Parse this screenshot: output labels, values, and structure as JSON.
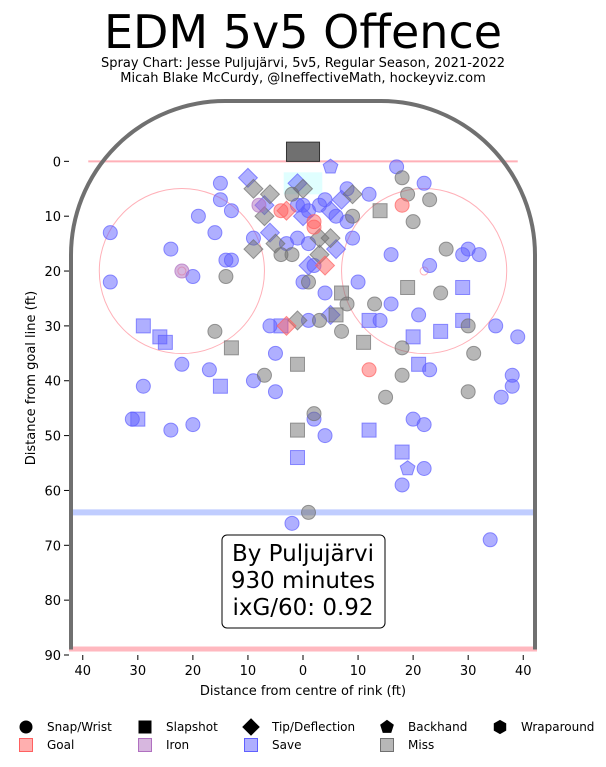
{
  "header": {
    "title": "EDM 5v5 Offence",
    "subtitle_1": "Spray Chart: Jesse Puljujärvi, 5v5, Regular Season, 2021-2022",
    "subtitle_2": "Micah Blake McCurdy, @IneffectiveMath, hockeyviz.com"
  },
  "annotation": {
    "line1": "By Puljujärvi",
    "line2": "930 minutes",
    "line3": "ixG/60: 0.92"
  },
  "legend": {
    "shapes": [
      "Snap/Wrist",
      "Slapshot",
      "Tip/Deflection",
      "Backhand",
      "Wraparound"
    ],
    "outcomes": [
      "Goal",
      "Iron",
      "Save",
      "Miss"
    ]
  },
  "colors": {
    "goal": "#ff6060",
    "iron": "#b070c0",
    "save": "#6060ff",
    "miss": "#707070",
    "board": "#707070",
    "red_line": "#ffb0b8",
    "blue_line": "#b0c0ff"
  },
  "chart_data": {
    "type": "scatter",
    "xlabel": "Distance from centre of rink (ft)",
    "ylabel": "Distance from goal line (ft)",
    "xlim": [
      -42.5,
      42.5
    ],
    "ylim": [
      90,
      -11
    ],
    "xticks": [
      "40",
      "30",
      "20",
      "10",
      "0",
      "10",
      "20",
      "30",
      "40"
    ],
    "xtick_values": [
      -40,
      -30,
      -20,
      -10,
      0,
      10,
      20,
      30,
      40
    ],
    "yticks": [
      0,
      10,
      20,
      30,
      40,
      50,
      60,
      70,
      80,
      90
    ],
    "points": [
      {
        "x": -35,
        "y": 13,
        "shape": "Snap/Wrist",
        "outcome": "Save"
      },
      {
        "x": -35,
        "y": 22,
        "shape": "Snap/Wrist",
        "outcome": "Save"
      },
      {
        "x": -29,
        "y": 41,
        "shape": "Snap/Wrist",
        "outcome": "Save"
      },
      {
        "x": -29,
        "y": 30,
        "shape": "Slapshot",
        "outcome": "Save"
      },
      {
        "x": -31,
        "y": 47,
        "shape": "Snap/Wrist",
        "outcome": "Save"
      },
      {
        "x": -30,
        "y": 47,
        "shape": "Slapshot",
        "outcome": "Save"
      },
      {
        "x": -26,
        "y": 32,
        "shape": "Slapshot",
        "outcome": "Save"
      },
      {
        "x": -25,
        "y": 33,
        "shape": "Slapshot",
        "outcome": "Save"
      },
      {
        "x": -24,
        "y": 16,
        "shape": "Snap/Wrist",
        "outcome": "Save"
      },
      {
        "x": -24,
        "y": 49,
        "shape": "Snap/Wrist",
        "outcome": "Save"
      },
      {
        "x": -22,
        "y": 37,
        "shape": "Snap/Wrist",
        "outcome": "Save"
      },
      {
        "x": -22,
        "y": 20,
        "shape": "Snap/Wrist",
        "outcome": "Iron"
      },
      {
        "x": -20,
        "y": 21,
        "shape": "Snap/Wrist",
        "outcome": "Save"
      },
      {
        "x": -20,
        "y": 48,
        "shape": "Snap/Wrist",
        "outcome": "Save"
      },
      {
        "x": -19,
        "y": 10,
        "shape": "Snap/Wrist",
        "outcome": "Save"
      },
      {
        "x": -17,
        "y": 38,
        "shape": "Snap/Wrist",
        "outcome": "Save"
      },
      {
        "x": -16,
        "y": 31,
        "shape": "Snap/Wrist",
        "outcome": "Miss"
      },
      {
        "x": -16,
        "y": 13,
        "shape": "Snap/Wrist",
        "outcome": "Save"
      },
      {
        "x": -15,
        "y": 4,
        "shape": "Snap/Wrist",
        "outcome": "Save"
      },
      {
        "x": -15,
        "y": 7,
        "shape": "Snap/Wrist",
        "outcome": "Save"
      },
      {
        "x": -15,
        "y": 41,
        "shape": "Slapshot",
        "outcome": "Save"
      },
      {
        "x": -14,
        "y": 18,
        "shape": "Snap/Wrist",
        "outcome": "Save"
      },
      {
        "x": -14,
        "y": 21,
        "shape": "Snap/Wrist",
        "outcome": "Miss"
      },
      {
        "x": -13,
        "y": 9,
        "shape": "Snap/Wrist",
        "outcome": "Save"
      },
      {
        "x": -13,
        "y": 18,
        "shape": "Snap/Wrist",
        "outcome": "Save"
      },
      {
        "x": -13,
        "y": 34,
        "shape": "Slapshot",
        "outcome": "Miss"
      },
      {
        "x": -10,
        "y": 3,
        "shape": "Tip/Deflection",
        "outcome": "Save"
      },
      {
        "x": -9,
        "y": 5,
        "shape": "Tip/Deflection",
        "outcome": "Miss"
      },
      {
        "x": -9,
        "y": 14,
        "shape": "Snap/Wrist",
        "outcome": "Save"
      },
      {
        "x": -9,
        "y": 16,
        "shape": "Tip/Deflection",
        "outcome": "Miss"
      },
      {
        "x": -9,
        "y": 40,
        "shape": "Snap/Wrist",
        "outcome": "Save"
      },
      {
        "x": -8,
        "y": 8,
        "shape": "Snap/Wrist",
        "outcome": "Iron"
      },
      {
        "x": -7,
        "y": 8,
        "shape": "Tip/Deflection",
        "outcome": "Save"
      },
      {
        "x": -7,
        "y": 10,
        "shape": "Tip/Deflection",
        "outcome": "Miss"
      },
      {
        "x": -7,
        "y": 39,
        "shape": "Snap/Wrist",
        "outcome": "Miss"
      },
      {
        "x": -6,
        "y": 6,
        "shape": "Tip/Deflection",
        "outcome": "Miss"
      },
      {
        "x": -6,
        "y": 13,
        "shape": "Tip/Deflection",
        "outcome": "Save"
      },
      {
        "x": -6,
        "y": 30,
        "shape": "Snap/Wrist",
        "outcome": "Save"
      },
      {
        "x": -5,
        "y": 35,
        "shape": "Snap/Wrist",
        "outcome": "Save"
      },
      {
        "x": -5,
        "y": 42,
        "shape": "Snap/Wrist",
        "outcome": "Save"
      },
      {
        "x": -5,
        "y": 15,
        "shape": "Tip/Deflection",
        "outcome": "Miss"
      },
      {
        "x": -4,
        "y": 9,
        "shape": "Snap/Wrist",
        "outcome": "Goal"
      },
      {
        "x": -4,
        "y": 17,
        "shape": "Snap/Wrist",
        "outcome": "Miss"
      },
      {
        "x": -4,
        "y": 30,
        "shape": "Slapshot",
        "outcome": "Save"
      },
      {
        "x": -3,
        "y": 9,
        "shape": "Tip/Deflection",
        "outcome": "Goal"
      },
      {
        "x": -3,
        "y": 15,
        "shape": "Snap/Wrist",
        "outcome": "Save"
      },
      {
        "x": -3,
        "y": 30,
        "shape": "Tip/Deflection",
        "outcome": "Goal"
      },
      {
        "x": -2,
        "y": 6,
        "shape": "Snap/Wrist",
        "outcome": "Miss"
      },
      {
        "x": -2,
        "y": 17,
        "shape": "Snap/Wrist",
        "outcome": "Miss"
      },
      {
        "x": -2,
        "y": 66,
        "shape": "Snap/Wrist",
        "outcome": "Save"
      },
      {
        "x": -1,
        "y": 4,
        "shape": "Tip/Deflection",
        "outcome": "Save"
      },
      {
        "x": -1,
        "y": 8,
        "shape": "Snap/Wrist",
        "outcome": "Save"
      },
      {
        "x": -1,
        "y": 14,
        "shape": "Snap/Wrist",
        "outcome": "Save"
      },
      {
        "x": -1,
        "y": 29,
        "shape": "Tip/Deflection",
        "outcome": "Miss"
      },
      {
        "x": -1,
        "y": 37,
        "shape": "Slapshot",
        "outcome": "Miss"
      },
      {
        "x": -1,
        "y": 49,
        "shape": "Slapshot",
        "outcome": "Miss"
      },
      {
        "x": -1,
        "y": 54,
        "shape": "Slapshot",
        "outcome": "Save"
      },
      {
        "x": 0,
        "y": 5,
        "shape": "Tip/Deflection",
        "outcome": "Miss"
      },
      {
        "x": 0,
        "y": 8,
        "shape": "Snap/Wrist",
        "outcome": "Save"
      },
      {
        "x": 0,
        "y": 10,
        "shape": "Tip/Deflection",
        "outcome": "Save"
      },
      {
        "x": 0,
        "y": 22,
        "shape": "Snap/Wrist",
        "outcome": "Save"
      },
      {
        "x": 1,
        "y": 9,
        "shape": "Snap/Wrist",
        "outcome": "Save"
      },
      {
        "x": 1,
        "y": 15,
        "shape": "Snap/Wrist",
        "outcome": "Save"
      },
      {
        "x": 1,
        "y": 19,
        "shape": "Tip/Deflection",
        "outcome": "Save"
      },
      {
        "x": 1,
        "y": 22,
        "shape": "Snap/Wrist",
        "outcome": "Miss"
      },
      {
        "x": 1,
        "y": 29,
        "shape": "Snap/Wrist",
        "outcome": "Save"
      },
      {
        "x": 1,
        "y": 64,
        "shape": "Snap/Wrist",
        "outcome": "Miss"
      },
      {
        "x": 2,
        "y": 11,
        "shape": "Snap/Wrist",
        "outcome": "Goal"
      },
      {
        "x": 2,
        "y": 12,
        "shape": "Snap/Wrist",
        "outcome": "Goal"
      },
      {
        "x": 2,
        "y": 19,
        "shape": "Snap/Wrist",
        "outcome": "Save"
      },
      {
        "x": 2,
        "y": 46,
        "shape": "Snap/Wrist",
        "outcome": "Miss"
      },
      {
        "x": 2,
        "y": 47,
        "shape": "Snap/Wrist",
        "outcome": "Save"
      },
      {
        "x": 3,
        "y": 8,
        "shape": "Snap/Wrist",
        "outcome": "Save"
      },
      {
        "x": 3,
        "y": 14,
        "shape": "Tip/Deflection",
        "outcome": "Miss"
      },
      {
        "x": 3,
        "y": 29,
        "shape": "Snap/Wrist",
        "outcome": "Miss"
      },
      {
        "x": 3,
        "y": 17,
        "shape": "Tip/Deflection",
        "outcome": "Miss"
      },
      {
        "x": 4,
        "y": 7,
        "shape": "Snap/Wrist",
        "outcome": "Save"
      },
      {
        "x": 4,
        "y": 19,
        "shape": "Tip/Deflection",
        "outcome": "Goal"
      },
      {
        "x": 4,
        "y": 24,
        "shape": "Snap/Wrist",
        "outcome": "Save"
      },
      {
        "x": 4,
        "y": 50,
        "shape": "Snap/Wrist",
        "outcome": "Save"
      },
      {
        "x": 5,
        "y": 1,
        "shape": "Backhand",
        "outcome": "Save"
      },
      {
        "x": 5,
        "y": 9,
        "shape": "Tip/Deflection",
        "outcome": "Save"
      },
      {
        "x": 5,
        "y": 14,
        "shape": "Tip/Deflection",
        "outcome": "Miss"
      },
      {
        "x": 5,
        "y": 28,
        "shape": "Tip/Deflection",
        "outcome": "Save"
      },
      {
        "x": 6,
        "y": 10,
        "shape": "Snap/Wrist",
        "outcome": "Save"
      },
      {
        "x": 6,
        "y": 16,
        "shape": "Tip/Deflection",
        "outcome": "Save"
      },
      {
        "x": 6,
        "y": 28,
        "shape": "Slapshot",
        "outcome": "Miss"
      },
      {
        "x": 7,
        "y": 7,
        "shape": "Tip/Deflection",
        "outcome": "Save"
      },
      {
        "x": 7,
        "y": 24,
        "shape": "Slapshot",
        "outcome": "Miss"
      },
      {
        "x": 7,
        "y": 31,
        "shape": "Snap/Wrist",
        "outcome": "Miss"
      },
      {
        "x": 8,
        "y": 5,
        "shape": "Snap/Wrist",
        "outcome": "Save"
      },
      {
        "x": 8,
        "y": 11,
        "shape": "Snap/Wrist",
        "outcome": "Save"
      },
      {
        "x": 8,
        "y": 26,
        "shape": "Snap/Wrist",
        "outcome": "Miss"
      },
      {
        "x": 9,
        "y": 6,
        "shape": "Tip/Deflection",
        "outcome": "Miss"
      },
      {
        "x": 9,
        "y": 10,
        "shape": "Snap/Wrist",
        "outcome": "Miss"
      },
      {
        "x": 9,
        "y": 14,
        "shape": "Snap/Wrist",
        "outcome": "Save"
      },
      {
        "x": 10,
        "y": 22,
        "shape": "Snap/Wrist",
        "outcome": "Save"
      },
      {
        "x": 11,
        "y": 33,
        "shape": "Slapshot",
        "outcome": "Miss"
      },
      {
        "x": 12,
        "y": 6,
        "shape": "Snap/Wrist",
        "outcome": "Save"
      },
      {
        "x": 12,
        "y": 29,
        "shape": "Slapshot",
        "outcome": "Save"
      },
      {
        "x": 12,
        "y": 38,
        "shape": "Snap/Wrist",
        "outcome": "Goal"
      },
      {
        "x": 12,
        "y": 49,
        "shape": "Slapshot",
        "outcome": "Save"
      },
      {
        "x": 13,
        "y": 26,
        "shape": "Snap/Wrist",
        "outcome": "Miss"
      },
      {
        "x": 14,
        "y": 9,
        "shape": "Slapshot",
        "outcome": "Miss"
      },
      {
        "x": 14,
        "y": 29,
        "shape": "Snap/Wrist",
        "outcome": "Save"
      },
      {
        "x": 15,
        "y": 43,
        "shape": "Snap/Wrist",
        "outcome": "Miss"
      },
      {
        "x": 16,
        "y": 17,
        "shape": "Snap/Wrist",
        "outcome": "Save"
      },
      {
        "x": 16,
        "y": 26,
        "shape": "Snap/Wrist",
        "outcome": "Save"
      },
      {
        "x": 17,
        "y": 1,
        "shape": "Snap/Wrist",
        "outcome": "Save"
      },
      {
        "x": 18,
        "y": 3,
        "shape": "Snap/Wrist",
        "outcome": "Miss"
      },
      {
        "x": 18,
        "y": 8,
        "shape": "Snap/Wrist",
        "outcome": "Goal"
      },
      {
        "x": 18,
        "y": 34,
        "shape": "Snap/Wrist",
        "outcome": "Miss"
      },
      {
        "x": 18,
        "y": 39,
        "shape": "Snap/Wrist",
        "outcome": "Miss"
      },
      {
        "x": 18,
        "y": 53,
        "shape": "Slapshot",
        "outcome": "Save"
      },
      {
        "x": 18,
        "y": 59,
        "shape": "Snap/Wrist",
        "outcome": "Save"
      },
      {
        "x": 19,
        "y": 6,
        "shape": "Snap/Wrist",
        "outcome": "Miss"
      },
      {
        "x": 19,
        "y": 23,
        "shape": "Slapshot",
        "outcome": "Miss"
      },
      {
        "x": 19,
        "y": 56,
        "shape": "Backhand",
        "outcome": "Save"
      },
      {
        "x": 20,
        "y": 11,
        "shape": "Snap/Wrist",
        "outcome": "Miss"
      },
      {
        "x": 20,
        "y": 32,
        "shape": "Slapshot",
        "outcome": "Save"
      },
      {
        "x": 20,
        "y": 47,
        "shape": "Snap/Wrist",
        "outcome": "Save"
      },
      {
        "x": 21,
        "y": 28,
        "shape": "Snap/Wrist",
        "outcome": "Save"
      },
      {
        "x": 21,
        "y": 37,
        "shape": "Slapshot",
        "outcome": "Save"
      },
      {
        "x": 22,
        "y": 4,
        "shape": "Snap/Wrist",
        "outcome": "Save"
      },
      {
        "x": 22,
        "y": 48,
        "shape": "Snap/Wrist",
        "outcome": "Save"
      },
      {
        "x": 22,
        "y": 56,
        "shape": "Snap/Wrist",
        "outcome": "Save"
      },
      {
        "x": 23,
        "y": 7,
        "shape": "Snap/Wrist",
        "outcome": "Miss"
      },
      {
        "x": 23,
        "y": 19,
        "shape": "Snap/Wrist",
        "outcome": "Save"
      },
      {
        "x": 23,
        "y": 38,
        "shape": "Snap/Wrist",
        "outcome": "Save"
      },
      {
        "x": 25,
        "y": 24,
        "shape": "Snap/Wrist",
        "outcome": "Miss"
      },
      {
        "x": 25,
        "y": 31,
        "shape": "Slapshot",
        "outcome": "Save"
      },
      {
        "x": 26,
        "y": 16,
        "shape": "Snap/Wrist",
        "outcome": "Miss"
      },
      {
        "x": 29,
        "y": 17,
        "shape": "Snap/Wrist",
        "outcome": "Save"
      },
      {
        "x": 29,
        "y": 29,
        "shape": "Slapshot",
        "outcome": "Save"
      },
      {
        "x": 29,
        "y": 23,
        "shape": "Slapshot",
        "outcome": "Save"
      },
      {
        "x": 30,
        "y": 16,
        "shape": "Snap/Wrist",
        "outcome": "Save"
      },
      {
        "x": 30,
        "y": 30,
        "shape": "Snap/Wrist",
        "outcome": "Miss"
      },
      {
        "x": 30,
        "y": 42,
        "shape": "Snap/Wrist",
        "outcome": "Miss"
      },
      {
        "x": 31,
        "y": 35,
        "shape": "Snap/Wrist",
        "outcome": "Miss"
      },
      {
        "x": 32,
        "y": 17,
        "shape": "Snap/Wrist",
        "outcome": "Save"
      },
      {
        "x": 34,
        "y": 69,
        "shape": "Snap/Wrist",
        "outcome": "Save"
      },
      {
        "x": 35,
        "y": 30,
        "shape": "Snap/Wrist",
        "outcome": "Save"
      },
      {
        "x": 36,
        "y": 43,
        "shape": "Snap/Wrist",
        "outcome": "Save"
      },
      {
        "x": 38,
        "y": 39,
        "shape": "Snap/Wrist",
        "outcome": "Save"
      },
      {
        "x": 38,
        "y": 41,
        "shape": "Snap/Wrist",
        "outcome": "Save"
      },
      {
        "x": 39,
        "y": 32,
        "shape": "Snap/Wrist",
        "outcome": "Save"
      }
    ]
  }
}
